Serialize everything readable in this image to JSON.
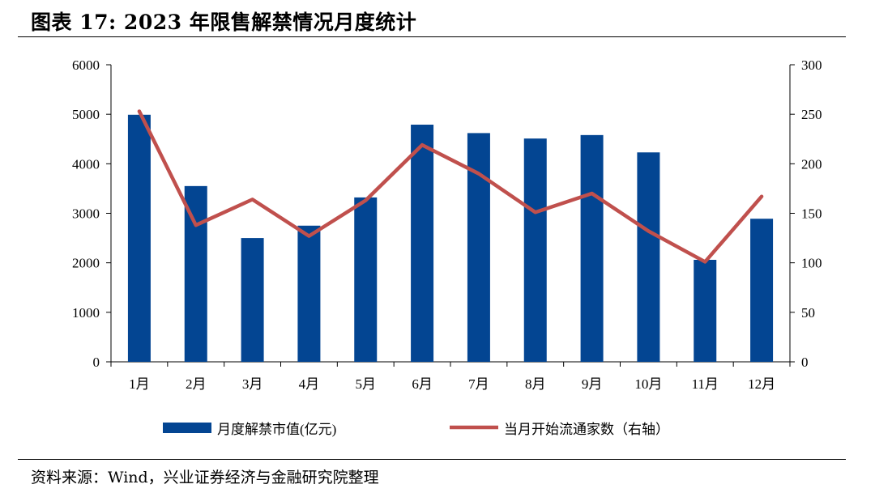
{
  "header": {
    "title": "图表 17:  2023 年限售解禁情况月度统计"
  },
  "footer": {
    "source": "资料来源：Wind，兴业证券经济与金融研究院整理"
  },
  "colors": {
    "bar": "#034592",
    "line": "#c0504d"
  },
  "chart_data": {
    "type": "bar",
    "categories": [
      "1月",
      "2月",
      "3月",
      "4月",
      "5月",
      "6月",
      "7月",
      "8月",
      "9月",
      "10月",
      "11月",
      "12月"
    ],
    "series": [
      {
        "name": "月度解禁市值(亿元)",
        "type": "bar",
        "axis": "left",
        "values": [
          4990,
          3550,
          2500,
          2750,
          3320,
          4790,
          4620,
          4510,
          4580,
          4230,
          2060,
          2890
        ]
      },
      {
        "name": "当月开始流通家数（右轴）",
        "type": "line",
        "axis": "right",
        "values": [
          253,
          138,
          164,
          127,
          163,
          219,
          190,
          151,
          170,
          132,
          101,
          167
        ]
      }
    ],
    "ylim_left": [
      0,
      6000
    ],
    "ylim_right": [
      0,
      300
    ],
    "yticks_left": [
      "0",
      "1000",
      "2000",
      "3000",
      "4000",
      "5000",
      "6000"
    ],
    "yticks_right": [
      "0",
      "50",
      "100",
      "150",
      "200",
      "250",
      "300"
    ],
    "legend_position": "bottom",
    "grid": false
  }
}
